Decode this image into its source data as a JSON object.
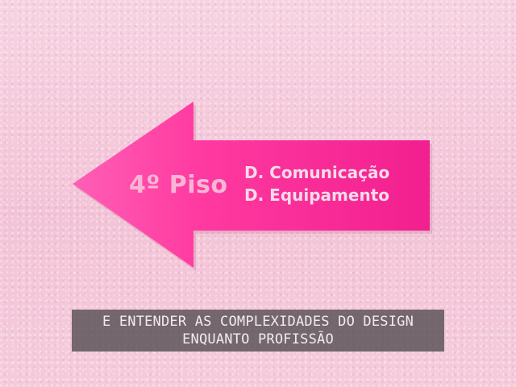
{
  "scene": {
    "sign": {
      "floor": "4º Piso",
      "departments": [
        "D. Comunicação",
        "D. Equipamento"
      ],
      "color": "#ff3fa4"
    },
    "wall_color": "#f4c8da"
  },
  "subtitle": {
    "lines": [
      "E ENTENDER AS COMPLEXIDADES DO DESIGN",
      "ENQUANTO PROFISSÃO"
    ]
  }
}
